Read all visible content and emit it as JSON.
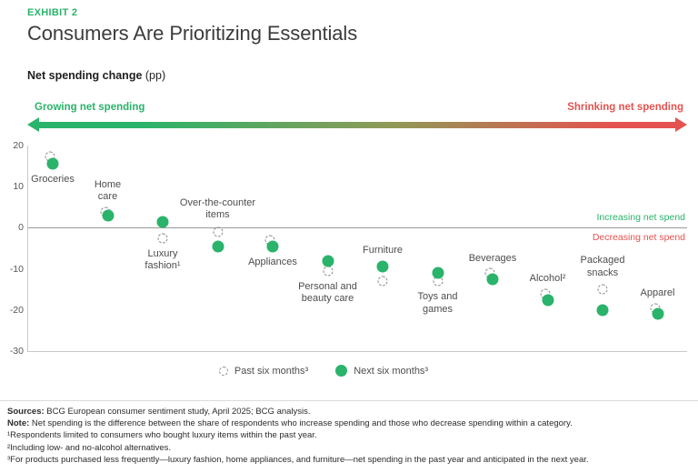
{
  "exhibit_label": "EXHIBIT 2",
  "title": "Consumers Are Prioritizing Essentials",
  "axis_title": {
    "bold": "Net spending change",
    "normal": " (pp)"
  },
  "arrow": {
    "left_label": "Growing net spending",
    "right_label": "Shrinking net spending"
  },
  "zero_line": {
    "above_label": "Increasing net spend",
    "below_label": "Decreasing net spend"
  },
  "legend": {
    "past_label": "Past six months³",
    "next_label": "Next six months³"
  },
  "colors": {
    "green": "#2AB36A",
    "red": "#E4534F",
    "title-gray": "#3C3C3C",
    "text-gray": "#4D4D4D",
    "dash-gray": "#8C8C8C",
    "axis-gray": "#C9C9C9",
    "zero-gray": "#9A9A9A"
  },
  "chart_data": {
    "type": "scatter",
    "title": "Consumers Are Prioritizing Essentials",
    "ylabel": "Net spending change (pp)",
    "ylim": [
      -30,
      20
    ],
    "yticks": [
      20,
      10,
      0,
      -10,
      -20,
      -30
    ],
    "grid": false,
    "legend_position": "bottom",
    "series": [
      {
        "name": "Past six months³",
        "marker": "dashed-open-circle"
      },
      {
        "name": "Next six months³",
        "marker": "solid-green-dot"
      }
    ],
    "categories": [
      {
        "label": "Groceries",
        "label_position": "below",
        "past": 17,
        "next": 15.5
      },
      {
        "label": "Home\ncare",
        "label_position": "above",
        "past": 3.5,
        "next": 3
      },
      {
        "label": "Luxury\nfashion¹",
        "label_position": "below",
        "past": -2.5,
        "next": 1.5
      },
      {
        "label": "Over-the-counter\nitems",
        "label_position": "above",
        "past": -1,
        "next": -4.5
      },
      {
        "label": "Appliances",
        "label_position": "below",
        "past": -3.5,
        "next": -4.5
      },
      {
        "label": "Personal and\nbeauty care",
        "label_position": "below",
        "past": -10.5,
        "next": -8
      },
      {
        "label": "Furniture",
        "label_position": "above",
        "past": -13,
        "next": -9.5
      },
      {
        "label": "Toys and\ngames",
        "label_position": "below",
        "past": -13,
        "next": -11
      },
      {
        "label": "Beverages",
        "label_position": "above",
        "past": -11.5,
        "next": -12.5
      },
      {
        "label": "Alcohol²",
        "label_position": "above",
        "past": -16.5,
        "next": -17.5
      },
      {
        "label": "Packaged\nsnacks",
        "label_position": "above",
        "past": -15,
        "next": -20
      },
      {
        "label": "Apparel",
        "label_position": "above",
        "past": -20,
        "next": -21
      }
    ]
  },
  "footnotes": [
    {
      "bold": "Sources:",
      "text": " BCG European consumer sentiment study, April 2025; BCG analysis."
    },
    {
      "bold": "Note:",
      "text": " Net spending is the difference between the share of respondents who increase spending and those who decrease spending within a category."
    },
    {
      "bold": "",
      "text": "¹Respondents limited to consumers who bought luxury items within the past year."
    },
    {
      "bold": "",
      "text": "²Including low- and no-alcohol alternatives."
    },
    {
      "bold": "",
      "text": "³For products purchased less frequently—luxury fashion, home appliances, and furniture—net spending in the past year and anticipated in the next year."
    }
  ]
}
